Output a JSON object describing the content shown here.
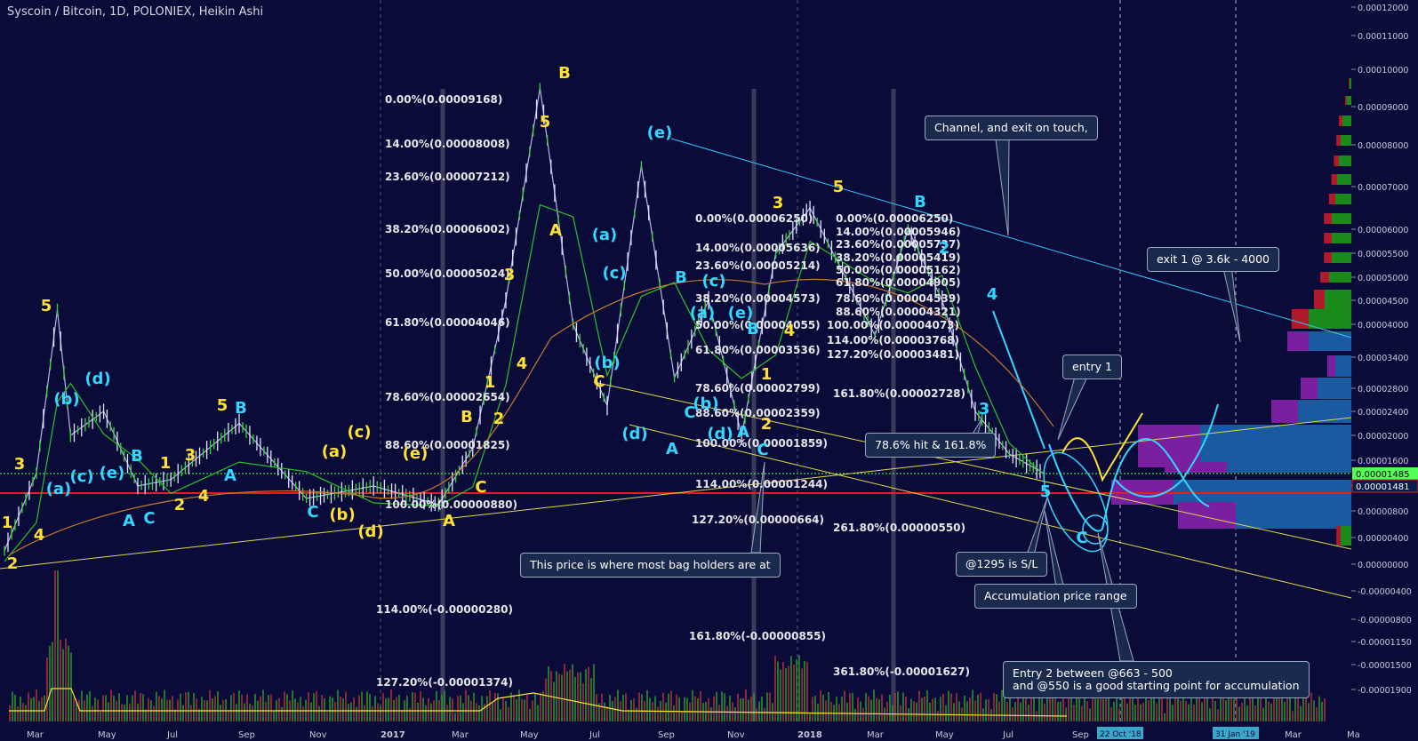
{
  "title": "Syscoin / Bitcoin, 1D, POLONIEX, Heikin Ashi",
  "colors": {
    "background": "#0b0b3a",
    "price_line": "#b4b4f0",
    "ma_green": "#29c229",
    "ma_orange": "#c27a2a",
    "wave_yellow": "#ffe033",
    "wave_cyan": "#33d6ff",
    "channel_cyan": "#33c8ff",
    "trend_yellow": "#e0d84a",
    "support_red": "#e02020",
    "current_green": "#55ff55"
  },
  "chart_data": {
    "type": "line",
    "log_scale": true,
    "ylim": [
      -1.9e-05,
      0.00012
    ],
    "current_price_label": "0.00001485",
    "support_price_label": "0.00001481",
    "price_axis_ticks": [
      "0.00012000",
      "0.00011000",
      "0.00010000",
      "0.00009000",
      "0.00008000",
      "0.00007000",
      "0.00006000",
      "0.00005500",
      "0.00005000",
      "0.00004500",
      "0.00004000",
      "0.00003400",
      "0.00002800",
      "0.00002400",
      "0.00002000",
      "0.00001600",
      "0.00001200",
      "0.00000800",
      "0.00000400",
      "0.00000000",
      "-0.00000400",
      "-0.00000800",
      "-0.00001150",
      "-0.00001500",
      "-0.00001900"
    ],
    "time_axis_ticks": [
      "Mar",
      "May",
      "Jul",
      "Sep",
      "Nov",
      "2017",
      "Mar",
      "May",
      "Jul",
      "Sep",
      "Nov",
      "2018",
      "Mar",
      "May",
      "Jul",
      "Sep",
      "2019",
      "Mar",
      "Ma"
    ],
    "date_markers": [
      "22 Oct '18",
      "31 Jan '19"
    ],
    "fib_set_1": [
      "0.00%(0.00009168)",
      "14.00%(0.00008008)",
      "23.60%(0.00007212)",
      "38.20%(0.00006002)",
      "50.00%(0.00005024)",
      "61.80%(0.00004046)",
      "78.60%(0.00002654)",
      "88.60%(0.00001825)",
      "100.00%(0.00000880)",
      "114.00%(-0.00000280)",
      "127.20%(-0.00001374)"
    ],
    "fib_set_2": [
      "0.00%(0.00006250)",
      "14.00%(0.00005636)",
      "23.60%(0.00005214)",
      "38.20%(0.00004573)",
      "50.00%(0.00004055)",
      "61.80%(0.00003536)",
      "78.60%(0.00002799)",
      "88.60%(0.00002359)",
      "100.00%(0.00001859)",
      "114.00%(0.00001244)",
      "127.20%(0.00000664)",
      "161.80%(-0.00000855)"
    ],
    "fib_set_3": [
      "0.00%(0.00006250)",
      "14.00%(0.00005946)",
      "23.60%(0.00005737)",
      "38.20%(0.00005419)",
      "50.00%(0.00005162)",
      "61.80%(0.00004905)",
      "78.60%(0.00004539)",
      "88.60%(0.00004321)",
      "100.00%(0.00004073)",
      "114.00%(0.00003768)",
      "127.20%(0.00003481)",
      "161.80%(0.00002728)",
      "261.80%(0.00000550)",
      "361.80%(-0.00001627)"
    ],
    "wave_labels": [
      "1",
      "2",
      "3",
      "4",
      "5",
      "(a)",
      "(b)",
      "(c)",
      "(d)",
      "(e)",
      "A",
      "B",
      "C"
    ],
    "approx_price_path": [
      {
        "t": "2016-02",
        "y": 2e-06
      },
      {
        "t": "2016-03",
        "y": 1.4e-05
      },
      {
        "t": "2016-03-20",
        "y": 4.3e-05
      },
      {
        "t": "2016-04",
        "y": 2e-05
      },
      {
        "t": "2016-05",
        "y": 2.4e-05
      },
      {
        "t": "2016-06",
        "y": 1.2e-05
      },
      {
        "t": "2016-07",
        "y": 1.3e-05
      },
      {
        "t": "2016-09",
        "y": 2.2e-05
      },
      {
        "t": "2016-11",
        "y": 1e-05
      },
      {
        "t": "2017-01",
        "y": 1.2e-05
      },
      {
        "t": "2017-03",
        "y": 9e-06
      },
      {
        "t": "2017-04",
        "y": 1.8e-05
      },
      {
        "t": "2017-05",
        "y": 4.5e-05
      },
      {
        "t": "2017-06",
        "y": 9.5e-05
      },
      {
        "t": "2017-07",
        "y": 4e-05
      },
      {
        "t": "2017-08",
        "y": 2.5e-05
      },
      {
        "t": "2017-09",
        "y": 7.5e-05
      },
      {
        "t": "2017-10",
        "y": 3e-05
      },
      {
        "t": "2017-11",
        "y": 4.5e-05
      },
      {
        "t": "2017-12",
        "y": 2e-05
      },
      {
        "t": "2018-01",
        "y": 5.5e-05
      },
      {
        "t": "2018-02",
        "y": 6.5e-05
      },
      {
        "t": "2018-04",
        "y": 3.8e-05
      },
      {
        "t": "2018-05",
        "y": 6e-05
      },
      {
        "t": "2018-06",
        "y": 4.5e-05
      },
      {
        "t": "2018-07",
        "y": 2.4e-05
      },
      {
        "t": "2018-08",
        "y": 1.7e-05
      },
      {
        "t": "2018-09",
        "y": 1.4e-05
      }
    ]
  },
  "callouts": {
    "channel": "Channel, and exit on touch,",
    "exit1": "exit 1 @ 3.6k - 4000",
    "entry1": "entry 1",
    "hit": "78.6% hit & 161.8%",
    "sl": "@1295 is S/L",
    "accum": "Accumulation price range",
    "bagholders": "This price is where most bag holders are at",
    "entry2": "Entry 2 between @663 - 500\nand @550 is a good starting point for accumulation"
  }
}
